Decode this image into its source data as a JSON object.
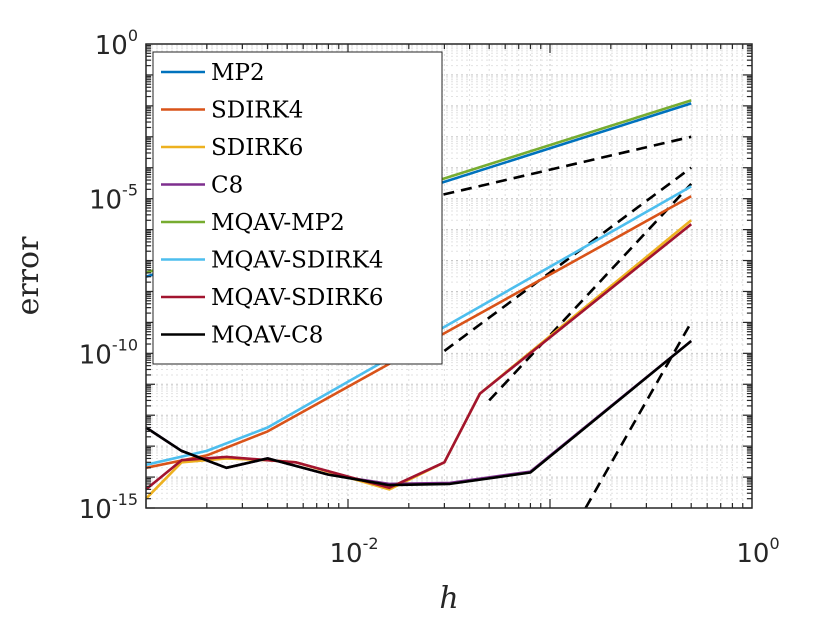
{
  "chart_data": {
    "type": "line",
    "xscale": "log",
    "yscale": "log",
    "xlim": [
      0.001,
      1
    ],
    "ylim": [
      1e-15,
      1
    ],
    "xlabel": "h",
    "ylabel": "error",
    "grid": true,
    "legend_location": "top-left",
    "xticks": [
      {
        "value": 0.01,
        "base": "10",
        "exp": "-2"
      },
      {
        "value": 1,
        "base": "10",
        "exp": "0"
      }
    ],
    "yticks": [
      {
        "value": 1,
        "base": "10",
        "exp": "0"
      },
      {
        "value": 1e-05,
        "base": "10",
        "exp": "-5"
      },
      {
        "value": 1e-10,
        "base": "10",
        "exp": "-10"
      },
      {
        "value": 1e-15,
        "base": "10",
        "exp": "-15"
      }
    ],
    "series": [
      {
        "name": "MP2",
        "color": "#0072BD",
        "x": [
          0.001,
          0.5
        ],
        "y": [
          3e-08,
          0.012
        ]
      },
      {
        "name": "SDIRK4",
        "color": "#D95319",
        "x": [
          0.001,
          0.002,
          0.004,
          0.5
        ],
        "y": [
          2e-14,
          5e-14,
          3e-13,
          1.2e-05
        ]
      },
      {
        "name": "SDIRK6",
        "color": "#EDB120",
        "x": [
          0.001,
          0.0015,
          0.0025,
          0.004,
          0.0055,
          0.016,
          0.03,
          0.045,
          0.5
        ],
        "y": [
          2e-15,
          3e-14,
          4e-14,
          3.5e-14,
          3e-14,
          4e-15,
          3e-14,
          5e-12,
          2e-06
        ]
      },
      {
        "name": "C8",
        "color": "#7E2F8E",
        "x": [
          0.001,
          0.0015,
          0.0025,
          0.004,
          0.008,
          0.016,
          0.032,
          0.08,
          0.5
        ],
        "y": [
          4e-13,
          7e-14,
          2e-14,
          4e-14,
          1.2e-14,
          6e-15,
          6.5e-15,
          1.5e-14,
          2.5e-10
        ]
      },
      {
        "name": "MQAV-MP2",
        "color": "#77AC30",
        "x": [
          0.001,
          0.5
        ],
        "y": [
          4e-08,
          0.015
        ]
      },
      {
        "name": "MQAV-SDIRK4",
        "color": "#4DBEEE",
        "x": [
          0.001,
          0.002,
          0.004,
          0.5
        ],
        "y": [
          2.5e-14,
          7e-14,
          4e-13,
          2.5e-05
        ]
      },
      {
        "name": "MQAV-SDIRK6",
        "color": "#A2142F",
        "x": [
          0.001,
          0.0015,
          0.0025,
          0.004,
          0.0055,
          0.016,
          0.03,
          0.045,
          0.5
        ],
        "y": [
          4e-15,
          3.5e-14,
          4.5e-14,
          3.5e-14,
          3e-14,
          4.5e-15,
          3e-14,
          5e-12,
          1.5e-06
        ]
      },
      {
        "name": "MQAV-C8",
        "color": "#000000",
        "x": [
          0.001,
          0.0015,
          0.0025,
          0.004,
          0.008,
          0.016,
          0.032,
          0.08,
          0.5
        ],
        "y": [
          4e-13,
          7e-14,
          2e-14,
          4e-14,
          1.2e-14,
          5.5e-15,
          6e-15,
          1.4e-14,
          2.5e-10
        ]
      }
    ],
    "reference_lines": [
      {
        "style": "dashed",
        "color": "#000000",
        "x": [
          0.006,
          0.5
        ],
        "y": [
          1.2e-06,
          0.001
        ]
      },
      {
        "style": "dashed",
        "color": "#000000",
        "x": [
          0.03,
          0.5
        ],
        "y": [
          1.2e-10,
          0.0001
        ]
      },
      {
        "style": "dashed",
        "color": "#000000",
        "x": [
          0.05,
          0.5
        ],
        "y": [
          3e-12,
          3e-05
        ]
      },
      {
        "style": "dashed",
        "color": "#000000",
        "x": [
          0.15,
          0.5
        ],
        "y": [
          1e-15,
          1e-09
        ]
      }
    ]
  }
}
